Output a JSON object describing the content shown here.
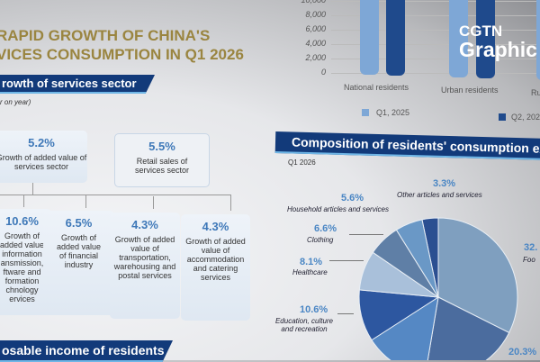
{
  "title": {
    "line1": "RAPID GROWTH OF CHINA'S",
    "line2": "VICES CONSUMPTION IN Q1 2026"
  },
  "section1": {
    "banner": "rowth of services sector",
    "note": "r on year)",
    "top_boxes": [
      {
        "value": "5.2%",
        "label": "Growth of added value of services sector"
      },
      {
        "value": "5.5%",
        "label": "Retail sales of services sector"
      }
    ],
    "sub_boxes": [
      {
        "value": "10.6%",
        "label": "Growth of added value information ansmission, ftware and formation chnology ervices"
      },
      {
        "value": "6.5%",
        "label": "Growth of added value of financial industry"
      },
      {
        "value": "4.3%",
        "label": "Growth of added value of transportation, warehousing and postal services"
      },
      {
        "value": "4.3%",
        "label": "Growth of added value of accommodation and catering services"
      }
    ]
  },
  "section3": {
    "banner": "osable income of residents"
  },
  "logo": {
    "line1": "CGTN",
    "line2": "Graphic"
  },
  "chart_data": [
    {
      "type": "bar",
      "categories": [
        "National residents",
        "Urban residents",
        "Ru"
      ],
      "series": [
        {
          "name": "Q1, 2025",
          "color": "#7ea7d6"
        },
        {
          "name": "Q2, 202",
          "color": "#1f4a8c"
        }
      ],
      "yticks": [
        "0",
        "2,000",
        "4,000",
        "6,000",
        "8,000",
        "10,000"
      ],
      "ylim": [
        0,
        10000
      ]
    },
    {
      "type": "pie",
      "banner": "Composition of residents' consumption ex",
      "subtitle": "Q1 2026",
      "slices": [
        {
          "label": "Foo",
          "text": "32.",
          "value": 32.5,
          "color": "#7f9fbf"
        },
        {
          "label": "",
          "text": "20.3%",
          "value": 20.3,
          "color": "#4b6c9e"
        },
        {
          "label": "",
          "text": "",
          "value": 13.3,
          "color": "#5588c4"
        },
        {
          "label": "Education, culture and recreation",
          "text": "10.6%",
          "value": 10.6,
          "color": "#2d57a0"
        },
        {
          "label": "Healthcare",
          "text": "8.1%",
          "value": 8.1,
          "color": "#a9c0da"
        },
        {
          "label": "Clothing",
          "text": "6.6%",
          "value": 6.6,
          "color": "#5f7fa6"
        },
        {
          "label": "Household articles and services",
          "text": "5.6%",
          "value": 5.6,
          "color": "#6a98c6"
        },
        {
          "label": "Other articles and services",
          "text": "3.3%",
          "value": 3.3,
          "color": "#2b4f91"
        }
      ]
    }
  ]
}
